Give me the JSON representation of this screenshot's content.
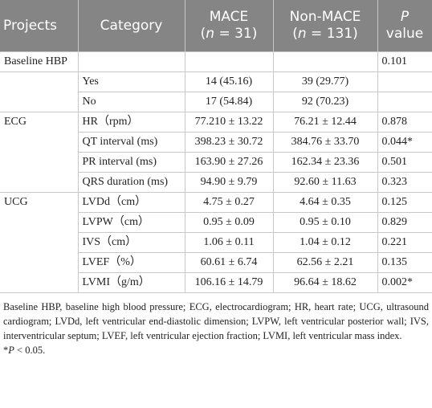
{
  "table": {
    "header": {
      "projects": "Projects",
      "category": "Category",
      "mace": [
        "MACE",
        "(",
        "n",
        " = 31)"
      ],
      "non_mace": [
        "Non-MACE",
        "(",
        "n",
        " = 131)"
      ],
      "p": [
        "P",
        "value"
      ]
    },
    "groups": [
      {
        "project": "Baseline HBP",
        "rows": [
          {
            "p": "0.101"
          }
        ]
      },
      {
        "rows": [
          {
            "category": "Yes",
            "mace": "14 (45.16)",
            "non_mace": "39 (29.77)"
          },
          {
            "category": "No",
            "mace": "17 (54.84)",
            "non_mace": "92 (70.23)"
          }
        ]
      },
      {
        "project": "ECG",
        "rows": [
          {
            "category": "HR（rpm）",
            "mace": "77.210 ± 13.22",
            "non_mace": "76.21 ± 12.44",
            "p": "0.878"
          },
          {
            "category": "QT interval (ms)",
            "mace": "398.23 ± 30.72",
            "non_mace": "384.76 ± 33.70",
            "p": "0.044*"
          },
          {
            "category": "PR interval (ms)",
            "mace": "163.90 ± 27.26",
            "non_mace": "162.34 ± 23.36",
            "p": "0.501"
          },
          {
            "category": "QRS duration (ms)",
            "mace": "94.90 ± 9.79",
            "non_mace": "92.60 ± 11.63",
            "p": "0.323"
          }
        ]
      },
      {
        "project": "UCG",
        "rows": [
          {
            "category": "LVDd（cm）",
            "mace": "4.75 ± 0.27",
            "non_mace": "4.64 ± 0.35",
            "p": "0.125"
          },
          {
            "category": "LVPW（cm）",
            "mace": "0.95 ± 0.09",
            "non_mace": "0.95 ± 0.10",
            "p": "0.829"
          },
          {
            "category": "IVS（cm）",
            "mace": "1.06 ± 0.11",
            "non_mace": "1.04 ± 0.12",
            "p": "0.221"
          },
          {
            "category": "LVEF（%）",
            "mace": "60.61 ± 6.74",
            "non_mace": "62.56 ± 2.21",
            "p": "0.135"
          },
          {
            "category": "LVMI（g/m）",
            "mace": "106.16 ± 14.79",
            "non_mace": "96.64 ± 18.62",
            "p": "0.002*"
          }
        ]
      }
    ]
  },
  "footnote": {
    "notes": "Baseline HBP, baseline high blood pressure; ECG, electrocardiogram; HR, heart rate; UCG, ultrasound cardiogram; LVDd, left ventricular end-diastolic dimension; LVPW, left ventricular posterior wall; IVS, interventricular septum; LVEF, left ventricular ejection fraction; LVMI, left ventricular mass index.",
    "significance": [
      "*",
      "P",
      " < 0.05."
    ]
  }
}
